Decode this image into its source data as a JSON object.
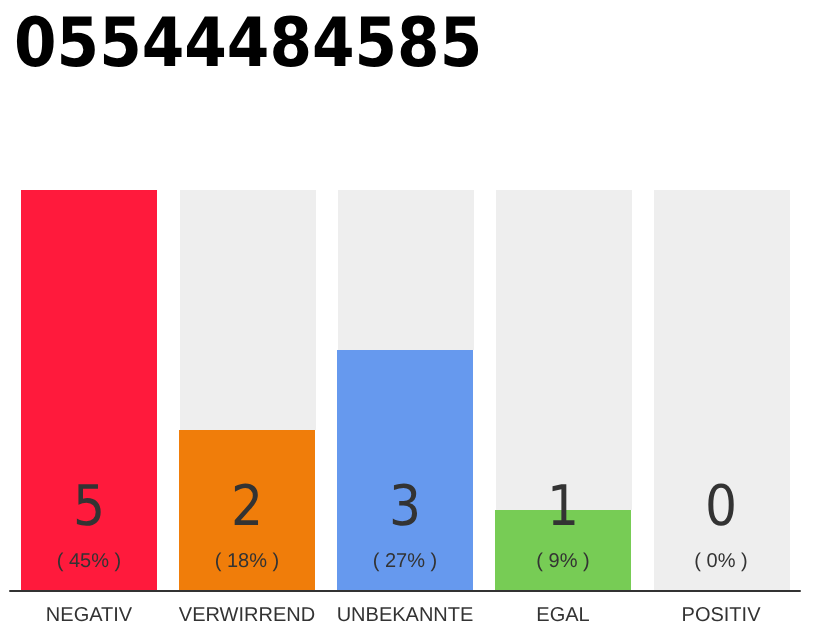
{
  "chart_data": {
    "type": "bar",
    "title": "05544484585",
    "categories": [
      "NEGATIV",
      "VERWIRREND",
      "UNBEKANNTE",
      "EGAL",
      "POSITIV"
    ],
    "values": [
      5,
      2,
      3,
      1,
      0
    ],
    "colors": [
      "#ff1a3c",
      "#f07d0a",
      "#6699ee",
      "#77cc55",
      "#cccccc"
    ],
    "data_labels": true,
    "annotations": [
      "( 45% )",
      "( 18% )",
      "( 27% )",
      "( 9% )",
      "( 0% )"
    ]
  }
}
